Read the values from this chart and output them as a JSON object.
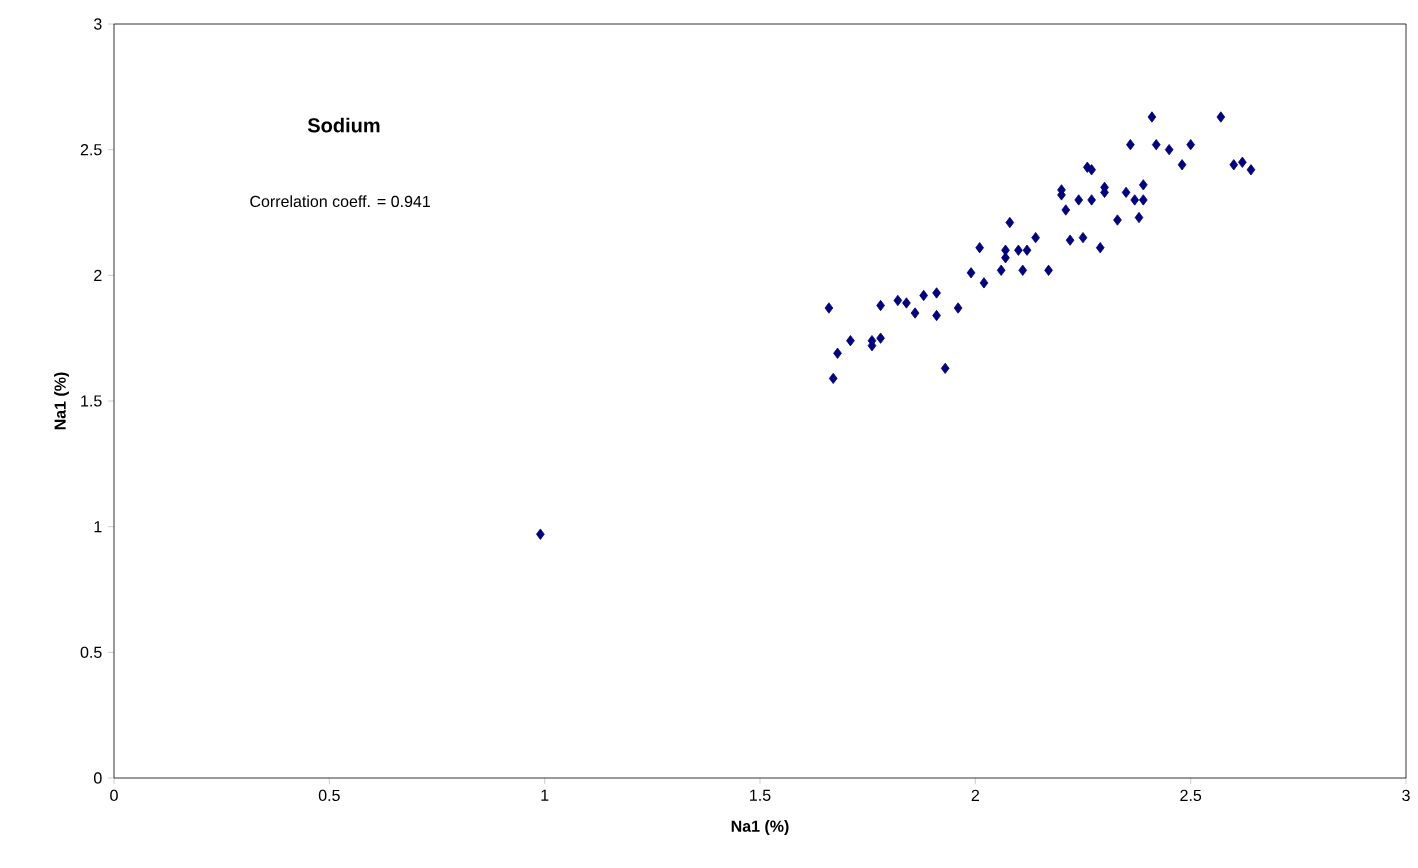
{
  "chart_data": {
    "type": "scatter",
    "title": "Sodium",
    "xlabel": "Na1 (%)",
    "ylabel": "Na1 (%)",
    "annotations": [
      "Correlation coeff. = 0.941"
    ],
    "x": [
      1.66,
      1.67,
      1.68,
      1.71,
      1.76,
      1.76,
      1.78,
      1.78,
      1.82,
      1.84,
      1.86,
      1.88,
      1.91,
      1.91,
      1.93,
      1.96,
      1.99,
      2.01,
      2.02,
      2.06,
      2.07,
      2.07,
      2.08,
      2.1,
      2.11,
      2.12,
      2.14,
      2.17,
      2.2,
      2.2,
      2.21,
      2.22,
      2.24,
      2.25,
      2.26,
      2.27,
      2.27,
      2.29,
      2.3,
      2.3,
      2.33,
      2.35,
      2.36,
      2.37,
      2.38,
      2.39,
      2.39,
      2.41,
      2.42,
      2.45,
      2.48,
      2.5,
      2.57,
      2.6,
      2.62,
      2.64,
      0.99
    ],
    "series": [
      {
        "color": "#000080",
        "values": [
          1.87,
          1.59,
          1.69,
          1.74,
          1.72,
          1.74,
          1.75,
          1.88,
          1.9,
          1.89,
          1.85,
          1.92,
          1.93,
          1.84,
          1.63,
          1.87,
          2.01,
          2.11,
          1.97,
          2.02,
          2.07,
          2.1,
          2.21,
          2.1,
          2.02,
          2.1,
          2.15,
          2.02,
          2.34,
          2.32,
          2.26,
          2.14,
          2.3,
          2.15,
          2.43,
          2.42,
          2.3,
          2.11,
          2.35,
          2.33,
          2.22,
          2.33,
          2.52,
          2.3,
          2.23,
          2.36,
          2.3,
          2.63,
          2.52,
          2.5,
          2.44,
          2.52,
          2.63,
          2.44,
          2.45,
          2.42,
          0.97
        ]
      }
    ],
    "xlim": [
      0,
      3
    ],
    "ylim": [
      0,
      3
    ],
    "xticks": [
      0,
      0.5,
      1,
      1.5,
      2,
      2.5,
      3
    ],
    "yticks": [
      0,
      0.5,
      1,
      1.5,
      2,
      2.5,
      3
    ],
    "grid": false,
    "marker": "diamond"
  }
}
